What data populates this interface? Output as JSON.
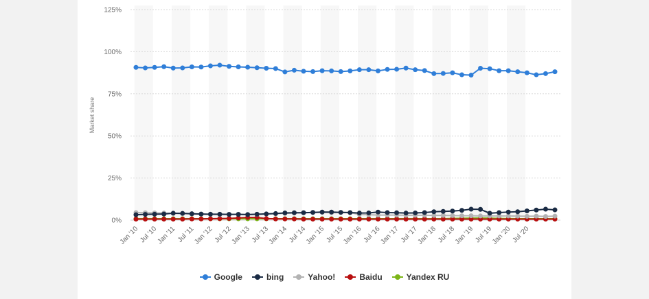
{
  "chart_data": {
    "type": "line",
    "ylabel": "Market share",
    "y_ticks": [
      "125%",
      "100%",
      "75%",
      "50%",
      "25%",
      "0%"
    ],
    "y_tick_values": [
      125,
      100,
      75,
      50,
      25,
      0
    ],
    "ylim": [
      0,
      125
    ],
    "grid": true,
    "legend_position": "bottom",
    "x_tick_labels": [
      "Jan '10",
      "Jul '10",
      "Jan '11",
      "Jul '11",
      "Jan '12",
      "Jul '12",
      "Jan '13",
      "Jul '13",
      "Jan '14",
      "Jul '14",
      "Jan '15",
      "Jul '15",
      "Jan '16",
      "Jul '16",
      "Jan '17",
      "Jul '17",
      "Jan '18",
      "Jul '18",
      "Jan '19",
      "Jul '19",
      "Jan '20",
      "Jul '20"
    ],
    "series": [
      {
        "name": "Google",
        "color": "#2f7ed8",
        "values": [
          90.7,
          90.4,
          90.7,
          91.1,
          90.3,
          90.4,
          91.0,
          90.9,
          91.6,
          92.0,
          91.3,
          91.0,
          90.8,
          90.5,
          90.2,
          90.0,
          88.0,
          89.0,
          88.4,
          88.2,
          88.7,
          88.6,
          88.2,
          88.6,
          89.3,
          89.3,
          88.6,
          89.5,
          89.6,
          90.3,
          89.3,
          88.8,
          87.0,
          87.1,
          87.5,
          86.3,
          86.1,
          90.2,
          89.9,
          88.7,
          88.7,
          88.1,
          87.5,
          86.3,
          87.0,
          88.1
        ]
      },
      {
        "name": "bing",
        "color": "#1a2b44",
        "values": [
          3.2,
          3.4,
          3.5,
          3.6,
          4.1,
          4.0,
          3.8,
          3.6,
          3.5,
          3.5,
          3.4,
          3.4,
          3.3,
          3.5,
          3.7,
          3.9,
          4.3,
          4.4,
          4.4,
          4.6,
          4.8,
          4.8,
          4.6,
          4.5,
          4.2,
          4.3,
          4.8,
          4.5,
          4.4,
          4.2,
          4.3,
          4.5,
          5.0,
          5.2,
          5.4,
          5.8,
          6.5,
          6.4,
          4.1,
          4.5,
          4.8,
          5.0,
          5.5,
          6.0,
          6.5,
          6.1
        ]
      },
      {
        "name": "Yahoo!",
        "color": "#b3b3b3",
        "values": [
          4.5,
          4.4,
          4.3,
          4.2,
          4.0,
          3.9,
          3.6,
          3.5,
          3.4,
          3.3,
          3.4,
          3.5,
          3.3,
          3.4,
          3.6,
          3.8,
          4.0,
          4.3,
          4.5,
          4.5,
          4.6,
          4.4,
          4.6,
          4.4,
          3.4,
          3.2,
          3.0,
          3.0,
          3.0,
          2.9,
          2.9,
          2.9,
          2.8,
          2.8,
          2.7,
          2.6,
          2.6,
          2.5,
          2.5,
          2.5,
          2.5,
          2.4,
          2.3,
          2.4,
          2.2,
          2.4
        ]
      },
      {
        "name": "Baidu",
        "color": "#b80f0f",
        "values": [
          0.6,
          0.6,
          0.6,
          0.6,
          0.6,
          0.6,
          0.7,
          0.7,
          0.8,
          0.9,
          1.0,
          1.3,
          1.6,
          1.6,
          0.9,
          0.7,
          0.7,
          0.7,
          0.6,
          0.6,
          0.6,
          0.6,
          0.6,
          0.6,
          0.6,
          0.6,
          0.6,
          0.6,
          0.6,
          0.6,
          0.6,
          0.6,
          0.6,
          0.6,
          0.6,
          0.6,
          0.6,
          0.6,
          0.6,
          0.6,
          0.6,
          0.6,
          0.6,
          0.6,
          0.6,
          0.6
        ]
      },
      {
        "name": "Yandex RU",
        "color": "#7cb518",
        "values": [
          0.8,
          0.8,
          0.8,
          0.8,
          0.8,
          0.8,
          0.8,
          0.8,
          0.8,
          0.8,
          0.8,
          0.8,
          0.8,
          0.8,
          0.8,
          0.8,
          0.8,
          0.8,
          0.8,
          0.8,
          0.8,
          0.8,
          0.8,
          0.8,
          0.8,
          0.8,
          0.8,
          0.8,
          0.8,
          0.8,
          0.8,
          0.8,
          0.8,
          0.8,
          1.0,
          1.1,
          1.2,
          1.3,
          1.2,
          1.0,
          0.9,
          0.8,
          0.8,
          0.8,
          0.8,
          0.8
        ]
      }
    ]
  }
}
